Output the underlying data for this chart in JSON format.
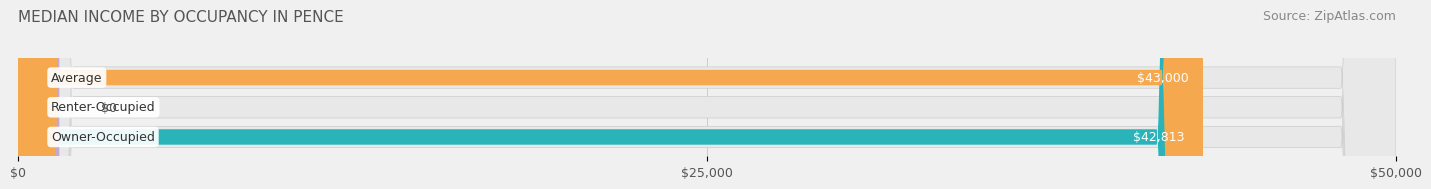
{
  "title": "MEDIAN INCOME BY OCCUPANCY IN PENCE",
  "source": "Source: ZipAtlas.com",
  "categories": [
    "Owner-Occupied",
    "Renter-Occupied",
    "Average"
  ],
  "values": [
    42813,
    0,
    43000
  ],
  "bar_colors": [
    "#2ab3b8",
    "#c3a8d1",
    "#f5a84e"
  ],
  "bar_labels": [
    "$42,813",
    "$0",
    "$43,000"
  ],
  "xlim": [
    0,
    50000
  ],
  "xticks": [
    0,
    25000,
    50000
  ],
  "xtick_labels": [
    "$0",
    "$25,000",
    "$50,000"
  ],
  "background_color": "#f0f0f0",
  "bar_bg_color": "#e8e8e8",
  "title_fontsize": 11,
  "source_fontsize": 9,
  "label_fontsize": 9,
  "tick_fontsize": 9
}
